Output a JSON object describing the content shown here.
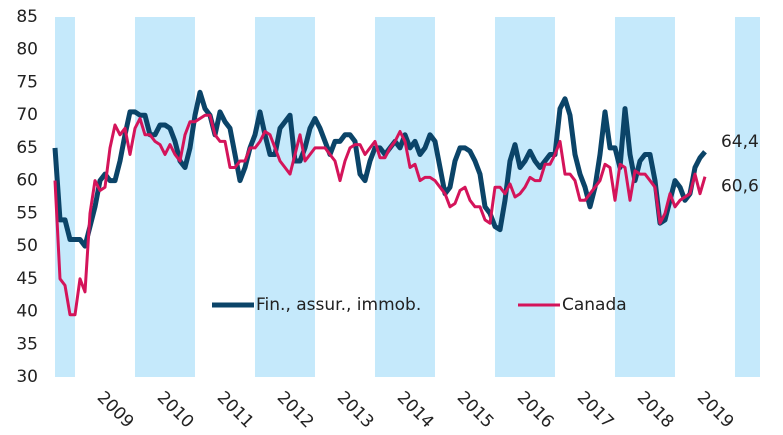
{
  "chart_data": {
    "type": "line",
    "x": [
      2008.667,
      2008.75,
      2008.833,
      2008.917,
      2009,
      2009.083,
      2009.167,
      2009.25,
      2009.333,
      2009.417,
      2009.5,
      2009.583,
      2009.667,
      2009.75,
      2009.833,
      2009.917,
      2010,
      2010.083,
      2010.167,
      2010.25,
      2010.333,
      2010.417,
      2010.5,
      2010.583,
      2010.667,
      2010.75,
      2010.833,
      2010.917,
      2011,
      2011.083,
      2011.167,
      2011.25,
      2011.333,
      2011.417,
      2011.5,
      2011.583,
      2011.667,
      2011.75,
      2011.833,
      2011.917,
      2012,
      2012.083,
      2012.167,
      2012.25,
      2012.333,
      2012.417,
      2012.5,
      2012.583,
      2012.667,
      2012.75,
      2012.833,
      2012.917,
      2013,
      2013.083,
      2013.167,
      2013.25,
      2013.333,
      2013.417,
      2013.5,
      2013.583,
      2013.667,
      2013.75,
      2013.833,
      2013.917,
      2014,
      2014.083,
      2014.167,
      2014.25,
      2014.333,
      2014.417,
      2014.5,
      2014.583,
      2014.667,
      2014.75,
      2014.833,
      2014.917,
      2015,
      2015.083,
      2015.167,
      2015.25,
      2015.333,
      2015.417,
      2015.5,
      2015.583,
      2015.667,
      2015.75,
      2015.833,
      2015.917,
      2016,
      2016.083,
      2016.167,
      2016.25,
      2016.333,
      2016.417,
      2016.5,
      2016.583,
      2016.667,
      2016.75,
      2016.833,
      2016.917,
      2017,
      2017.083,
      2017.167,
      2017.25,
      2017.333,
      2017.417,
      2017.5,
      2017.583,
      2017.667,
      2017.75,
      2017.833,
      2017.917,
      2018,
      2018.083,
      2018.167,
      2018.25,
      2018.333,
      2018.417,
      2018.5,
      2018.583,
      2018.667,
      2018.75,
      2018.833,
      2018.917,
      2019,
      2019.083,
      2019.167,
      2019.25,
      2019.333,
      2019.417,
      2019.5
    ],
    "series": [
      {
        "name": "Fin., assur., immob.",
        "color": "#0b4468",
        "width": 5,
        "end_label": "64,4",
        "values": [
          65,
          54,
          54,
          51,
          51,
          51,
          50,
          53,
          56,
          60,
          61,
          60,
          60,
          63,
          67,
          70.5,
          70.5,
          70,
          70,
          67,
          67,
          68.5,
          68.5,
          68,
          66,
          63,
          62,
          65,
          70,
          73.5,
          71,
          70,
          67,
          70.5,
          69,
          68,
          64,
          60,
          62,
          65,
          67,
          70.5,
          67,
          64,
          64,
          68,
          69,
          70,
          63,
          63,
          65,
          68,
          69.5,
          68,
          66,
          64,
          66,
          66,
          67,
          67,
          66,
          61,
          60,
          63,
          65,
          65,
          64,
          65,
          66,
          65,
          67,
          65,
          66,
          64,
          65,
          67,
          66,
          62,
          58,
          59,
          63,
          65,
          65,
          64.5,
          63,
          61,
          56,
          55,
          53,
          52.5,
          57,
          63,
          65.5,
          62,
          63,
          64.5,
          63,
          62,
          63,
          64,
          64,
          71,
          72.5,
          70,
          64,
          61,
          59,
          56,
          59,
          64,
          70.5,
          65,
          65,
          62,
          71,
          64,
          60,
          63,
          64,
          64,
          60,
          53.5,
          54,
          57,
          60,
          59,
          57,
          58,
          62,
          63.5,
          64.4
        ]
      },
      {
        "name": "Canada",
        "color": "#d4145a",
        "width": 3,
        "end_label": "60,6",
        "values": [
          60,
          45,
          44,
          39.5,
          39.5,
          45,
          43,
          55,
          60,
          58.5,
          59,
          65,
          68.5,
          67,
          68,
          64,
          68,
          69.5,
          67,
          67,
          66,
          65.5,
          64,
          65.5,
          64,
          63,
          67,
          69,
          69,
          69.5,
          70,
          70,
          67,
          66,
          66,
          62,
          62,
          63,
          63,
          65,
          65,
          66,
          67.5,
          67,
          65,
          63,
          62,
          61,
          64,
          67,
          63,
          64,
          65,
          65,
          65,
          64,
          63,
          60,
          63,
          65,
          65.5,
          65.5,
          64,
          65,
          66,
          63.5,
          63.5,
          65,
          66,
          67.5,
          66,
          62,
          62.5,
          60,
          60.5,
          60.5,
          60,
          59,
          58,
          56,
          56.5,
          58.5,
          59,
          57,
          56,
          56,
          54,
          53.5,
          59,
          59,
          58,
          59.5,
          57.5,
          58,
          59,
          60.5,
          60,
          60,
          62.5,
          62.5,
          64,
          66,
          61,
          61,
          60,
          57,
          57,
          58,
          59,
          60,
          62.5,
          62,
          57,
          62.5,
          62,
          57,
          61.5,
          61,
          61,
          60,
          59,
          53.5,
          55,
          58,
          56,
          57,
          57.5,
          58,
          61,
          58,
          60.6
        ]
      }
    ],
    "xlim": [
      2008.667,
      2020.417
    ],
    "xticks": [
      2009,
      2010,
      2011,
      2012,
      2013,
      2014,
      2015,
      2016,
      2017,
      2018,
      2019
    ],
    "ylim": [
      30,
      85
    ],
    "yticks": [
      30,
      35,
      40,
      45,
      50,
      55,
      60,
      65,
      70,
      75,
      80,
      85
    ],
    "band_color": "#c5e9fb",
    "legend": "center"
  }
}
